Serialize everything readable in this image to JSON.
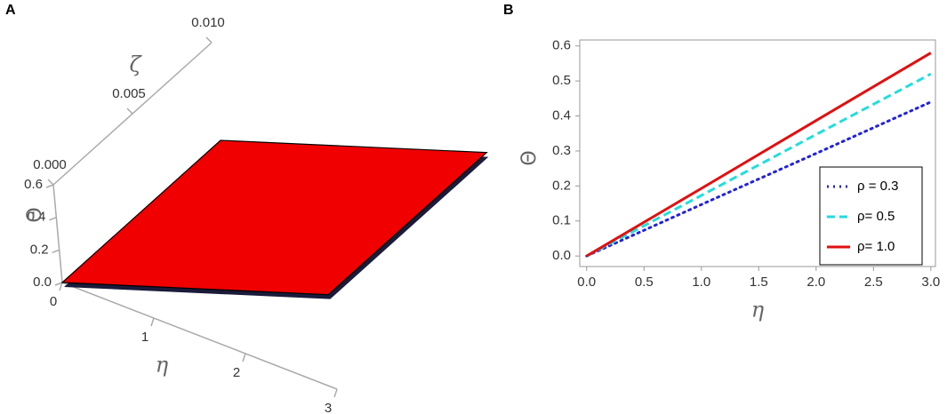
{
  "chart_data": [
    {
      "type": "surface3d",
      "panel_label": "A",
      "x_label": "η",
      "y_label": "ζ",
      "z_label": "Θ",
      "xlim": [
        0,
        3
      ],
      "ylim": [
        0,
        0.01
      ],
      "zlim": [
        0,
        0.6
      ],
      "xticks": [
        0,
        1,
        2,
        3
      ],
      "yticks": [
        {
          "value": 0,
          "label": "0.000"
        },
        0.005,
        {
          "value": 0.01,
          "label": "0.010"
        }
      ],
      "zticks": [
        {
          "value": 0,
          "label": "0.0"
        },
        0.2,
        0.4,
        0.6
      ],
      "surface": {
        "x": [
          0,
          3
        ],
        "y": [
          0,
          0.01
        ],
        "z": [
          [
            0,
            0
          ],
          [
            0.58,
            0.58
          ]
        ],
        "color": "#f00000"
      }
    },
    {
      "type": "line",
      "panel_label": "B",
      "x_label": "η",
      "y_label": "Θ",
      "xlim": [
        -0.06,
        3.04
      ],
      "ylim": [
        -0.03,
        0.617
      ],
      "xticks": [
        {
          "value": 0,
          "label": "0.0"
        },
        0.5,
        {
          "value": 1,
          "label": "1.0"
        },
        1.5,
        {
          "value": 2,
          "label": "2.0"
        },
        2.5,
        {
          "value": 3,
          "label": "3.0"
        }
      ],
      "yticks": [
        {
          "value": 0,
          "label": "0.0"
        },
        0.1,
        0.2,
        0.3,
        0.4,
        0.5,
        0.6
      ],
      "legend": "lower right",
      "x": [
        0,
        1,
        2,
        3
      ],
      "series": [
        {
          "name": "ρ = 0.3",
          "color": "#2222dd",
          "style": "dotted",
          "values": [
            0,
            0.147,
            0.293,
            0.44
          ]
        },
        {
          "name": "ρ= 0.5",
          "color": "#22dddd",
          "style": "dashed",
          "values": [
            0,
            0.173,
            0.347,
            0.52
          ]
        },
        {
          "name": "ρ= 1.0",
          "color": "#e01010",
          "style": "solid",
          "values": [
            0,
            0.193,
            0.387,
            0.58
          ]
        }
      ]
    }
  ]
}
